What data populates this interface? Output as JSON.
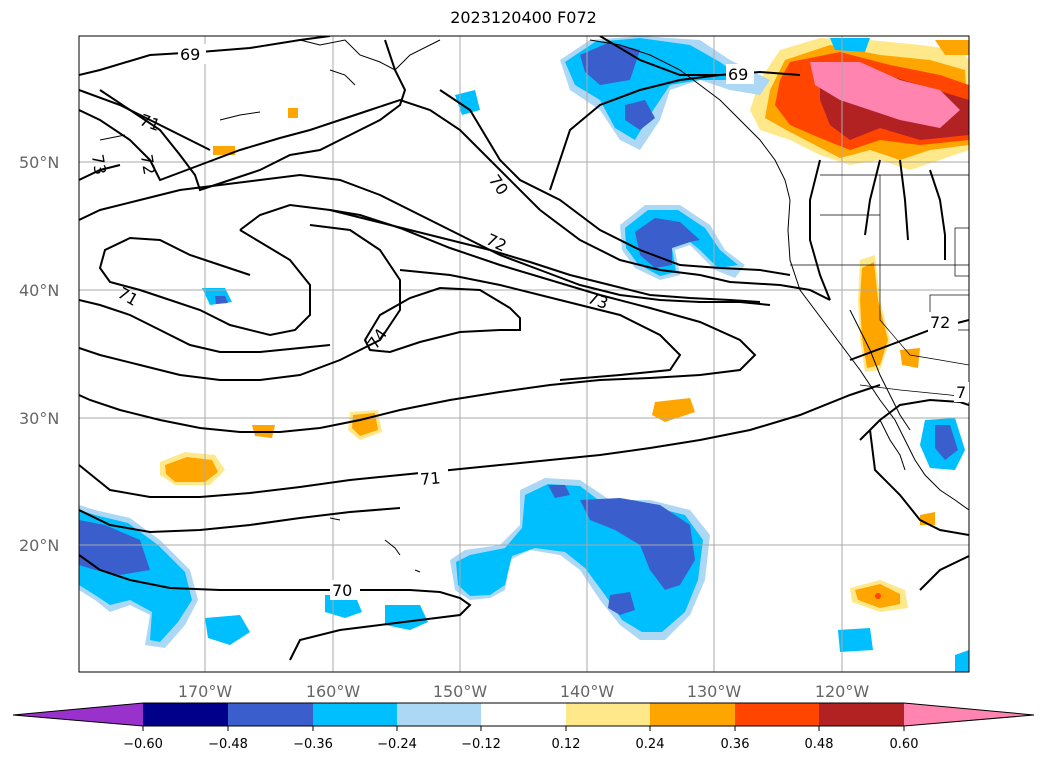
{
  "title": "2023120400 F072",
  "map": {
    "lat_labels": [
      "50°N",
      "40°N",
      "30°N",
      "20°N"
    ],
    "lon_labels": [
      "170°W",
      "160°W",
      "150°W",
      "140°W",
      "130°W",
      "120°W"
    ],
    "contour_labels": [
      "69",
      "69",
      "71",
      "72",
      "73",
      "70",
      "72",
      "73",
      "71",
      "74",
      "71",
      "70",
      "72",
      "7"
    ]
  },
  "colorbar": {
    "ticks": [
      "−0.60",
      "−0.48",
      "−0.36",
      "−0.24",
      "−0.12",
      "0.12",
      "0.24",
      "0.36",
      "0.48",
      "0.60"
    ],
    "colors": {
      "neg_extend": "#9932cc",
      "neg_060": "#00008b",
      "neg_048": "#3a5fcd",
      "neg_036": "#00bfff",
      "neg_024": "#add8f5",
      "neutral": "#ffffff",
      "pos_012": "#ffe88a",
      "pos_024": "#ffa500",
      "pos_036": "#ff4500",
      "pos_048": "#b22222",
      "pos_extend": "#ff85b0"
    }
  }
}
